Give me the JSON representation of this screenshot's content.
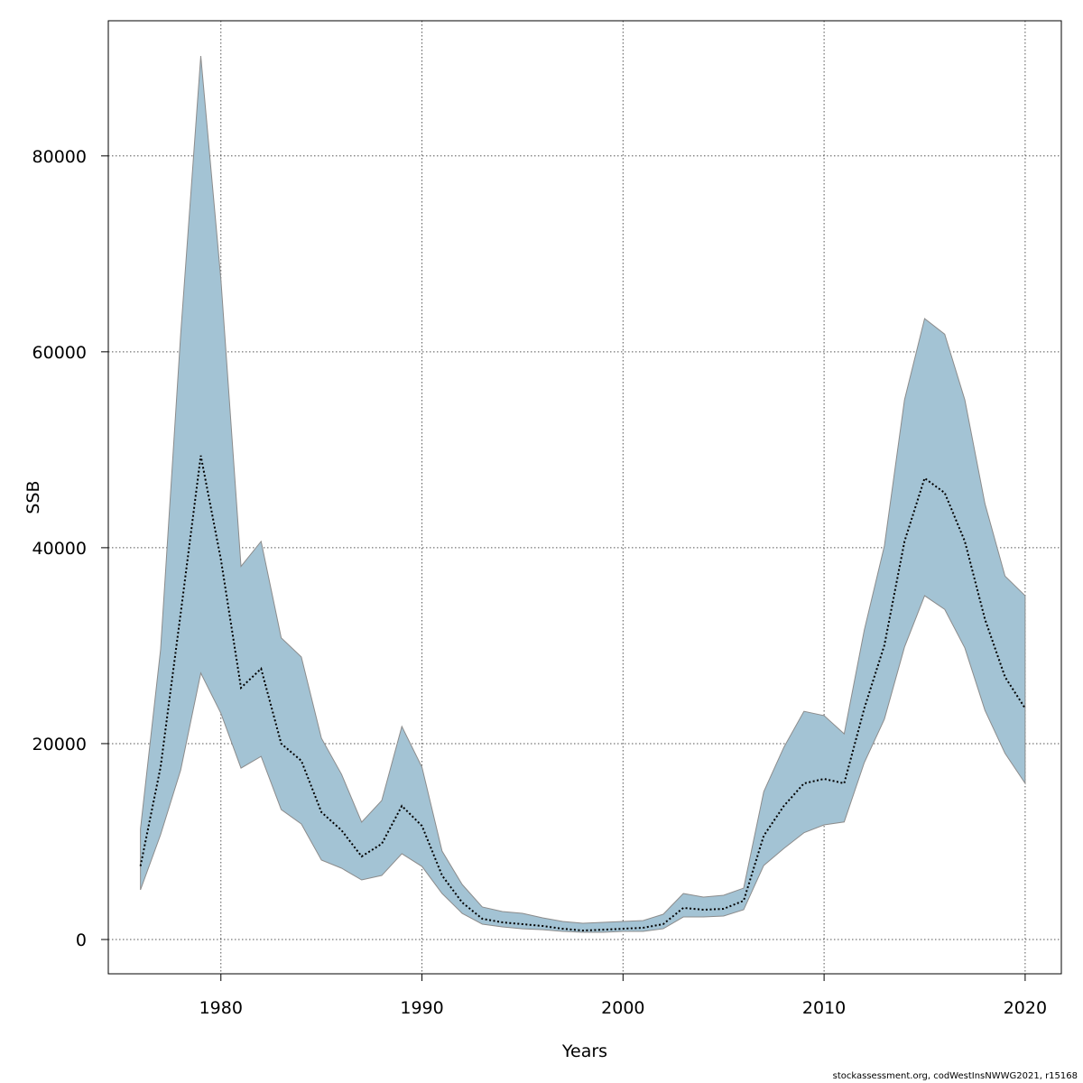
{
  "chart_data": {
    "type": "area",
    "xlabel": "Years",
    "ylabel": "SSB",
    "xlim": [
      1974.4,
      2021.8
    ],
    "ylim": [
      -3500,
      93800
    ],
    "xticks": [
      1980,
      1990,
      2000,
      2010,
      2020
    ],
    "yticks": [
      0,
      20000,
      40000,
      60000,
      80000
    ],
    "grid": true,
    "colors": {
      "band": "#a3c3d4",
      "band_edge": "#8c8c8c",
      "line": "#000000"
    },
    "x": [
      1976,
      1977,
      1978,
      1979,
      1980,
      1981,
      1982,
      1983,
      1984,
      1985,
      1986,
      1987,
      1988,
      1989,
      1990,
      1991,
      1992,
      1993,
      1994,
      1995,
      1996,
      1997,
      1998,
      1999,
      2000,
      2001,
      2002,
      2003,
      2004,
      2005,
      2006,
      2007,
      2008,
      2009,
      2010,
      2011,
      2012,
      2013,
      2014,
      2015,
      2016,
      2017,
      2018,
      2019,
      2020
    ],
    "series": [
      {
        "role": "estimate",
        "values": [
          7500,
          17600,
          33300,
          49400,
          38800,
          25700,
          27650,
          20000,
          18250,
          13000,
          11150,
          8480,
          9770,
          13640,
          11600,
          6540,
          3780,
          2120,
          1750,
          1570,
          1380,
          1100,
          920,
          1000,
          1100,
          1200,
          1570,
          3230,
          3040,
          3130,
          3960,
          10600,
          13640,
          15940,
          16400,
          15940,
          23600,
          30050,
          40650,
          47100,
          45600,
          40650,
          32700,
          26800,
          23600
        ]
      },
      {
        "role": "upper",
        "values": [
          11300,
          29600,
          61800,
          90200,
          67400,
          38100,
          40650,
          30800,
          28850,
          20550,
          16870,
          11980,
          14190,
          21750,
          17600,
          9030,
          5620,
          3320,
          2860,
          2670,
          2210,
          1840,
          1660,
          1750,
          1840,
          1935,
          2580,
          4700,
          4330,
          4520,
          5250,
          15100,
          19630,
          23300,
          22860,
          21000,
          31600,
          40200,
          55100,
          63400,
          61800,
          55100,
          44500,
          37100,
          35100
        ]
      },
      {
        "role": "lower",
        "values": [
          5070,
          10700,
          17300,
          27200,
          23100,
          17500,
          18700,
          13270,
          11800,
          8110,
          7280,
          6080,
          6540,
          8760,
          7460,
          4700,
          2670,
          1570,
          1290,
          1100,
          1000,
          830,
          740,
          740,
          830,
          830,
          1100,
          2300,
          2300,
          2400,
          3040,
          7560,
          9300,
          10900,
          11700,
          12000,
          18060,
          22500,
          29860,
          35100,
          33700,
          29770,
          23400,
          19000,
          15940
        ]
      }
    ]
  },
  "footnote": "stockassessment.org, codWestInsNWWG2021, r15168"
}
